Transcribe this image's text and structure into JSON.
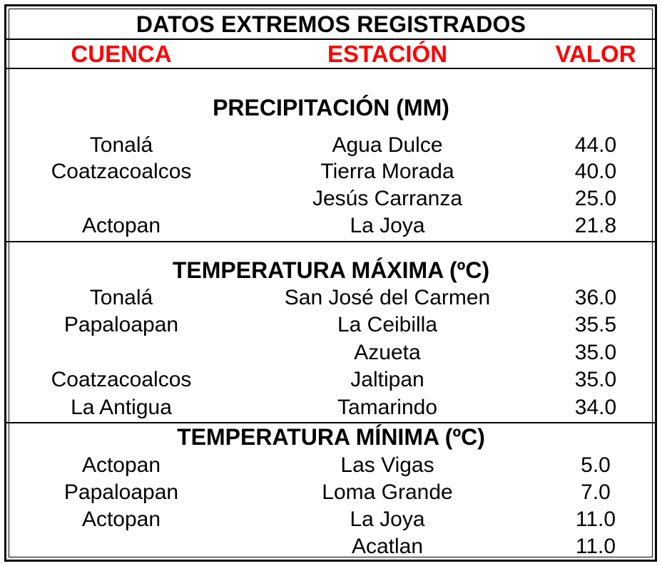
{
  "title": "DATOS EXTREMOS REGISTRADOS",
  "headers": {
    "cuenca": "CUENCA",
    "estacion": "ESTACIÓN",
    "valor": "VALOR"
  },
  "sections": [
    {
      "title": "PRECIPITACIÓN (MM)",
      "rows": [
        {
          "cuenca": "Tonalá",
          "estacion": "Agua Dulce",
          "valor": "44.0"
        },
        {
          "cuenca": "Coatzacoalcos",
          "estacion": "Tierra Morada",
          "valor": "40.0"
        },
        {
          "cuenca": "",
          "estacion": "Jesús Carranza",
          "valor": "25.0"
        },
        {
          "cuenca": "Actopan",
          "estacion": "La Joya",
          "valor": "21.8"
        }
      ]
    },
    {
      "title": "TEMPERATURA MÁXIMA (ºC)",
      "rows": [
        {
          "cuenca": "Tonalá",
          "estacion": "San José del Carmen",
          "valor": "36.0"
        },
        {
          "cuenca": "Papaloapan",
          "estacion": "La Ceibilla",
          "valor": "35.5"
        },
        {
          "cuenca": "",
          "estacion": "Azueta",
          "valor": "35.0"
        },
        {
          "cuenca": "Coatzacoalcos",
          "estacion": "Jaltipan",
          "valor": "35.0"
        },
        {
          "cuenca": "La Antigua",
          "estacion": "Tamarindo",
          "valor": "34.0"
        }
      ]
    },
    {
      "title": "TEMPERATURA MÍNIMA (ºC)",
      "rows": [
        {
          "cuenca": "Actopan",
          "estacion": "Las Vigas",
          "valor": "5.0"
        },
        {
          "cuenca": "Papaloapan",
          "estacion": "Loma Grande",
          "valor": "7.0"
        },
        {
          "cuenca": "Actopan",
          "estacion": "La Joya",
          "valor": "11.0"
        },
        {
          "cuenca": "",
          "estacion": "Acatlan",
          "valor": "11.0"
        }
      ]
    }
  ]
}
